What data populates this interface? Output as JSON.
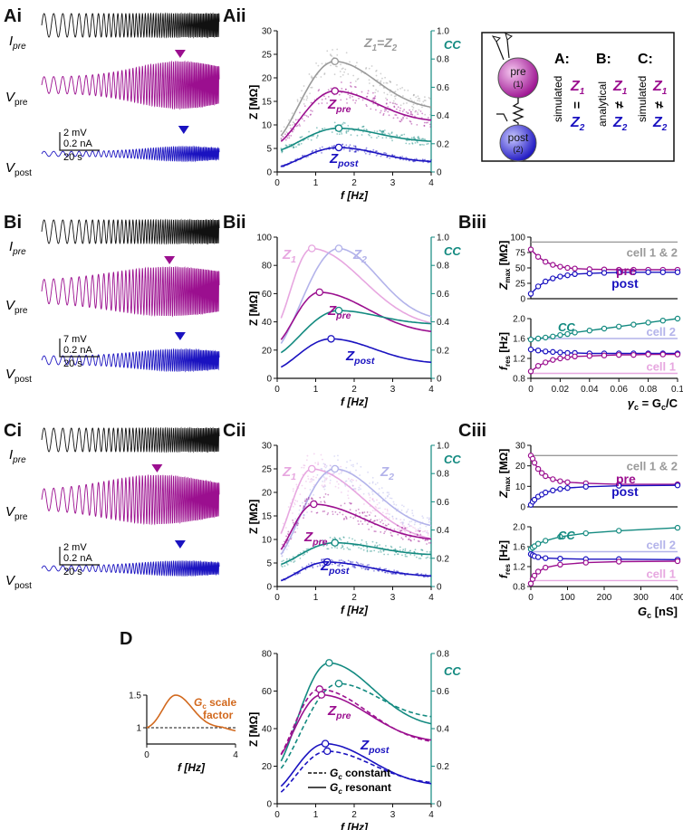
{
  "colors": {
    "pre": "#9b0f8f",
    "post": "#1a12c0",
    "cc": "#138a80",
    "gray": "#9a9a9a",
    "z1": "#e7a7e0",
    "z2": "#b3b3ea",
    "orange": "#d2691e",
    "black": "#111111"
  },
  "panel_labels": {
    "Ai": "Ai",
    "Aii": "Aii",
    "Bi": "Bi",
    "Bii": "Bii",
    "Biii": "Biii",
    "Ci": "Ci",
    "Cii": "Cii",
    "Ciii": "Ciii",
    "D": "D"
  },
  "trace_labels": {
    "ipre": "I",
    "vpre": "V",
    "vpost": "V",
    "sub_pre": "pre",
    "sub_post": "post"
  },
  "scalebars": {
    "A": {
      "v": "2 mV",
      "i": "0.2 nA",
      "t": "20 s"
    },
    "B": {
      "v": "7 mV",
      "i": "0.2 nA",
      "t": "20 s"
    },
    "C": {
      "v": "2 mV",
      "i": "0.2 nA",
      "t": "20 s"
    }
  },
  "legend_box": {
    "pre_label": "pre",
    "pre_num": "(1)",
    "post_label": "post",
    "post_num": "(2)",
    "cols": [
      {
        "head": "A:",
        "method": "simulated",
        "z1": "Z",
        "z1sub": "1",
        "rel": "=",
        "z2": "Z",
        "z2sub": "2"
      },
      {
        "head": "B:",
        "method": "analytical",
        "z1": "Z",
        "z1sub": "1",
        "rel": "≠",
        "z2": "Z",
        "z2sub": "2"
      },
      {
        "head": "C:",
        "method": "simulated",
        "z1": "Z",
        "z1sub": "1",
        "rel": "≠",
        "z2": "Z",
        "z2sub": "2"
      }
    ]
  },
  "chart_data": [
    {
      "id": "Aii",
      "type": "line",
      "ylabel": "Z [MΩ]",
      "xlabel": "f [Hz]",
      "y2label": "CC",
      "xlim": [
        0,
        4
      ],
      "ylim": [
        0,
        30
      ],
      "y2lim": [
        0,
        1.0
      ],
      "xticks": [
        "0",
        "1",
        "2",
        "3",
        "4"
      ],
      "yticks": [
        "0",
        "5",
        "10",
        "15",
        "20",
        "25",
        "30"
      ],
      "y2ticks": [
        "0",
        "0.2",
        "0.4",
        "0.6",
        "0.8",
        "1.0"
      ],
      "series": [
        {
          "name": "Z1=Z2",
          "peak_f": 1.5,
          "peak": 23.5,
          "y0": 7,
          "yend": 13,
          "axis": "left",
          "color": "gray",
          "scatter": true
        },
        {
          "name": "Zpre",
          "peak_f": 1.5,
          "peak": 17.2,
          "y0": 6,
          "yend": 10.5,
          "axis": "left",
          "color": "pre",
          "scatter": true
        },
        {
          "name": "CC",
          "peak_f": 1.6,
          "peak": 0.31,
          "y0": 0.15,
          "yend": 0.21,
          "axis": "right",
          "color": "cc",
          "scatter": true
        },
        {
          "name": "Zpost",
          "peak_f": 1.6,
          "peak": 5.2,
          "y0": 1,
          "yend": 2,
          "axis": "left",
          "color": "post",
          "scatter": true
        }
      ],
      "annotations": [
        {
          "text": "Z",
          "sub": "1",
          "text2": "=Z",
          "sub2": "2"
        },
        {
          "text": "Z",
          "sub": "pre"
        },
        {
          "text": "Z",
          "sub": "post"
        }
      ]
    },
    {
      "id": "Bii",
      "type": "line",
      "ylabel": "Z [MΩ]",
      "xlabel": "f [Hz]",
      "y2label": "CC",
      "xlim": [
        0,
        4
      ],
      "ylim": [
        0,
        100
      ],
      "y2lim": [
        0,
        1.0
      ],
      "xticks": [
        "0",
        "1",
        "2",
        "3",
        "4"
      ],
      "yticks": [
        "0",
        "20",
        "40",
        "60",
        "80",
        "100"
      ],
      "y2ticks": [
        "0",
        "0.2",
        "0.4",
        "0.6",
        "0.8",
        "1.0"
      ],
      "series": [
        {
          "name": "Z1",
          "peak_f": 0.9,
          "peak": 92,
          "y0": 38,
          "yend": 35,
          "axis": "left",
          "color": "z1"
        },
        {
          "name": "Z2",
          "peak_f": 1.6,
          "peak": 92,
          "y0": 22,
          "yend": 40,
          "axis": "left",
          "color": "z2"
        },
        {
          "name": "Zpre",
          "peak_f": 1.1,
          "peak": 61,
          "y0": 25,
          "yend": 31,
          "axis": "left",
          "color": "pre"
        },
        {
          "name": "CC",
          "peak_f": 1.6,
          "peak": 0.48,
          "y0": 0.17,
          "yend": 0.38,
          "axis": "right",
          "color": "cc"
        },
        {
          "name": "Zpost",
          "peak_f": 1.4,
          "peak": 28,
          "y0": 7,
          "yend": 10,
          "axis": "left",
          "color": "post"
        }
      ],
      "annotations": [
        {
          "text": "Z",
          "sub": "1"
        },
        {
          "text": "Z",
          "sub": "2"
        },
        {
          "text": "Z",
          "sub": "pre"
        },
        {
          "text": "Z",
          "sub": "post"
        }
      ]
    },
    {
      "id": "Biii_top",
      "type": "line",
      "ylabel": "Z",
      "ysub": "max",
      "yunit": " [MΩ]",
      "xlim": [
        0,
        0.1
      ],
      "ylim": [
        0,
        100
      ],
      "yticks": [
        "0",
        "25",
        "50",
        "75",
        "100"
      ],
      "series": [
        {
          "name": "pre",
          "values_x": [
            0,
            0.005,
            0.01,
            0.015,
            0.02,
            0.025,
            0.03,
            0.04,
            0.05,
            0.06,
            0.07,
            0.08,
            0.09,
            0.1
          ],
          "values": [
            80,
            68,
            60,
            55,
            52,
            50,
            49,
            48,
            47.5,
            47,
            47,
            47,
            47,
            47
          ],
          "color": "pre"
        },
        {
          "name": "post",
          "values_x": [
            0,
            0.005,
            0.01,
            0.015,
            0.02,
            0.025,
            0.03,
            0.04,
            0.05,
            0.06,
            0.07,
            0.08,
            0.09,
            0.1
          ],
          "values": [
            8,
            20,
            28,
            33,
            36,
            38,
            40,
            41,
            42,
            42.5,
            43,
            43,
            43,
            43
          ],
          "color": "post"
        }
      ],
      "hline": {
        "y": 92,
        "label": "cell 1 & 2",
        "color": "gray"
      },
      "legend": {
        "pre": "pre",
        "post": "post"
      }
    },
    {
      "id": "Biii_bottom",
      "type": "line",
      "ylabel": "f",
      "ysub": "res",
      "yunit": " [Hz]",
      "xlabel": "γc = Gc/C",
      "xlabel_main": "γ",
      "xlabel_sub": "c",
      "xlabel_rest": " = G",
      "xlabel_sub2": "c",
      "xlabel_end": "/C",
      "xlim": [
        0,
        0.1
      ],
      "ylim": [
        0.8,
        2.0
      ],
      "xticks": [
        "0",
        "0.02",
        "0.04",
        "0.06",
        "0.08",
        "0.1"
      ],
      "yticks": [
        "0.8",
        "1.2",
        "1.6",
        "2.0"
      ],
      "series": [
        {
          "name": "CC",
          "values_x": [
            0,
            0.005,
            0.01,
            0.015,
            0.02,
            0.025,
            0.03,
            0.04,
            0.05,
            0.06,
            0.07,
            0.08,
            0.09,
            0.1
          ],
          "values": [
            1.58,
            1.6,
            1.62,
            1.64,
            1.67,
            1.69,
            1.72,
            1.76,
            1.8,
            1.84,
            1.88,
            1.92,
            1.96,
            2.0
          ],
          "color": "cc"
        },
        {
          "name": "post",
          "values_x": [
            0,
            0.005,
            0.01,
            0.015,
            0.02,
            0.025,
            0.03,
            0.04,
            0.05,
            0.06,
            0.07,
            0.08,
            0.09,
            0.1
          ],
          "values": [
            1.38,
            1.36,
            1.34,
            1.33,
            1.32,
            1.31,
            1.31,
            1.3,
            1.3,
            1.3,
            1.3,
            1.3,
            1.3,
            1.3
          ],
          "color": "post"
        },
        {
          "name": "pre",
          "values_x": [
            0,
            0.005,
            0.01,
            0.015,
            0.02,
            0.025,
            0.03,
            0.04,
            0.05,
            0.06,
            0.07,
            0.08,
            0.09,
            0.1
          ],
          "values": [
            0.94,
            1.05,
            1.12,
            1.17,
            1.2,
            1.22,
            1.24,
            1.25,
            1.26,
            1.27,
            1.27,
            1.28,
            1.28,
            1.28
          ],
          "color": "pre"
        }
      ],
      "hlines": [
        {
          "y": 1.6,
          "label": "cell 2",
          "color": "z2"
        },
        {
          "y": 0.9,
          "label": "cell 1",
          "color": "z1"
        }
      ],
      "legend_cc": "CC"
    },
    {
      "id": "Cii",
      "type": "line",
      "ylabel": "Z [MΩ]",
      "xlabel": "f [Hz]",
      "y2label": "CC",
      "xlim": [
        0,
        4
      ],
      "ylim": [
        0,
        30
      ],
      "y2lim": [
        0,
        1.0
      ],
      "xticks": [
        "0",
        "1",
        "2",
        "3",
        "4"
      ],
      "yticks": [
        "0",
        "5",
        "10",
        "15",
        "20",
        "25",
        "30"
      ],
      "y2ticks": [
        "0",
        "0.2",
        "0.4",
        "0.6",
        "0.8",
        "1.0"
      ],
      "series": [
        {
          "name": "Z1",
          "peak_f": 0.9,
          "peak": 25,
          "y0": 10,
          "yend": 9,
          "axis": "left",
          "color": "z1",
          "scatter": true
        },
        {
          "name": "Z2",
          "peak_f": 1.5,
          "peak": 25,
          "y0": 6,
          "yend": 12,
          "axis": "left",
          "color": "z2",
          "scatter": true
        },
        {
          "name": "Zpre",
          "peak_f": 0.95,
          "peak": 17.5,
          "y0": 7,
          "yend": 9.5,
          "axis": "left",
          "color": "pre",
          "scatter": true
        },
        {
          "name": "CC",
          "peak_f": 1.5,
          "peak": 0.31,
          "y0": 0.15,
          "yend": 0.22,
          "axis": "right",
          "color": "cc",
          "scatter": true
        },
        {
          "name": "Zpost",
          "peak_f": 1.3,
          "peak": 5.2,
          "y0": 1,
          "yend": 2,
          "axis": "left",
          "color": "post",
          "scatter": true
        }
      ],
      "annotations": [
        {
          "text": "Z",
          "sub": "1"
        },
        {
          "text": "Z",
          "sub": "2"
        },
        {
          "text": "Z",
          "sub": "pre"
        },
        {
          "text": "Z",
          "sub": "post"
        }
      ]
    },
    {
      "id": "Ciii_top",
      "type": "line",
      "ylabel": "Z",
      "ysub": "max",
      "yunit": " [MΩ]",
      "xlim": [
        0,
        400
      ],
      "ylim": [
        0,
        30
      ],
      "yticks": [
        "0",
        "10",
        "20",
        "30"
      ],
      "series": [
        {
          "name": "pre",
          "values_x": [
            0,
            5,
            10,
            20,
            30,
            40,
            60,
            80,
            100,
            150,
            240,
            400
          ],
          "values": [
            25,
            23.5,
            21.5,
            18.5,
            16.5,
            15,
            13.5,
            12.5,
            12,
            11.5,
            11,
            11
          ],
          "color": "pre"
        },
        {
          "name": "post",
          "values_x": [
            0,
            5,
            10,
            20,
            30,
            40,
            60,
            80,
            100,
            150,
            240,
            400
          ],
          "values": [
            1,
            2.5,
            3.5,
            5,
            6,
            7,
            8,
            8.7,
            9.2,
            9.8,
            10.3,
            10.5
          ],
          "color": "post"
        }
      ],
      "hline": {
        "y": 25,
        "label": "cell 1 & 2",
        "color": "gray"
      },
      "legend": {
        "pre": "pre",
        "post": "post"
      }
    },
    {
      "id": "Ciii_bottom",
      "type": "line",
      "ylabel": "f",
      "ysub": "res",
      "yunit": " [Hz]",
      "xlabel": "Gc [nS]",
      "xlabel_main": "G",
      "xlabel_sub": "c",
      "xlabel_rest": " [nS]",
      "xlim": [
        0,
        400
      ],
      "ylim": [
        0.8,
        2.0
      ],
      "xticks": [
        "0",
        "100",
        "200",
        "300",
        "400"
      ],
      "yticks": [
        "0.8",
        "1.2",
        "1.6",
        "2.0"
      ],
      "series": [
        {
          "name": "CC",
          "values_x": [
            0,
            5,
            10,
            20,
            40,
            80,
            150,
            240,
            400
          ],
          "values": [
            1.55,
            1.58,
            1.61,
            1.66,
            1.72,
            1.8,
            1.87,
            1.92,
            1.98
          ],
          "color": "cc"
        },
        {
          "name": "post",
          "values_x": [
            0,
            5,
            10,
            20,
            40,
            80,
            150,
            240,
            400
          ],
          "values": [
            1.45,
            1.43,
            1.41,
            1.39,
            1.37,
            1.36,
            1.35,
            1.35,
            1.34
          ],
          "color": "post"
        },
        {
          "name": "pre",
          "values_x": [
            0,
            5,
            10,
            20,
            40,
            80,
            150,
            240,
            400
          ],
          "values": [
            0.86,
            0.95,
            1.02,
            1.1,
            1.18,
            1.24,
            1.28,
            1.3,
            1.31
          ],
          "color": "pre"
        }
      ],
      "hlines": [
        {
          "y": 1.5,
          "label": "cell 2",
          "color": "z2"
        },
        {
          "y": 0.92,
          "label": "cell 1",
          "color": "z1"
        }
      ],
      "legend_cc": "CC"
    },
    {
      "id": "D_inset",
      "type": "line",
      "ylabel": "",
      "xlabel": "f [Hz]",
      "xlim": [
        0,
        4
      ],
      "ylim": [
        0.75,
        1.5
      ],
      "xticks": [
        "0",
        "4"
      ],
      "yticks": [
        "1",
        "1.5"
      ],
      "series": [
        {
          "name": "Gc scale factor",
          "peak_f": 1.3,
          "peak": 1.5,
          "y0": 1.0,
          "yend": 1.0,
          "color": "orange"
        }
      ],
      "label": {
        "line1a": "G",
        "line1sub": "c",
        "line1b": " scale",
        "line2": "factor"
      },
      "dashed_y": 1.0
    },
    {
      "id": "D_main",
      "type": "line",
      "ylabel": "Z [MΩ]",
      "xlabel": "f [Hz]",
      "y2label": "CC",
      "xlim": [
        0,
        4
      ],
      "ylim": [
        0,
        80
      ],
      "y2lim": [
        0,
        0.8
      ],
      "xticks": [
        "0",
        "1",
        "2",
        "3",
        "4"
      ],
      "yticks": [
        "0",
        "20",
        "40",
        "60",
        "80"
      ],
      "y2ticks": [
        "0",
        "0.2",
        "0.4",
        "0.6",
        "0.8"
      ],
      "series": [
        {
          "name": "CC resonant",
          "peak_f": 1.35,
          "peak": 0.75,
          "y0": 0.2,
          "yend": 0.4,
          "axis": "right",
          "color": "cc",
          "dash": false
        },
        {
          "name": "CC constant",
          "peak_f": 1.6,
          "peak": 0.64,
          "y0": 0.17,
          "yend": 0.45,
          "axis": "right",
          "color": "cc",
          "dash": true
        },
        {
          "name": "Zpre constant",
          "peak_f": 1.1,
          "peak": 61,
          "y0": 24,
          "yend": 31,
          "axis": "left",
          "color": "pre",
          "dash": true
        },
        {
          "name": "Zpre resonant",
          "peak_f": 1.15,
          "peak": 58,
          "y0": 24,
          "yend": 32,
          "axis": "left",
          "color": "pre",
          "dash": false
        },
        {
          "name": "Zpost resonant",
          "peak_f": 1.25,
          "peak": 32,
          "y0": 8,
          "yend": 9,
          "axis": "left",
          "color": "post",
          "dash": false
        },
        {
          "name": "Zpost constant",
          "peak_f": 1.3,
          "peak": 28,
          "y0": 5,
          "yend": 10,
          "axis": "left",
          "color": "post",
          "dash": true
        }
      ],
      "annotations": [
        {
          "text": "Z",
          "sub": "pre"
        },
        {
          "text": "Z",
          "sub": "post"
        }
      ],
      "legend": [
        {
          "style": "dashed",
          "a": "G",
          "sub": "c",
          "b": " constant"
        },
        {
          "style": "solid",
          "a": "G",
          "sub": "c",
          "b": " resonant"
        }
      ]
    }
  ]
}
